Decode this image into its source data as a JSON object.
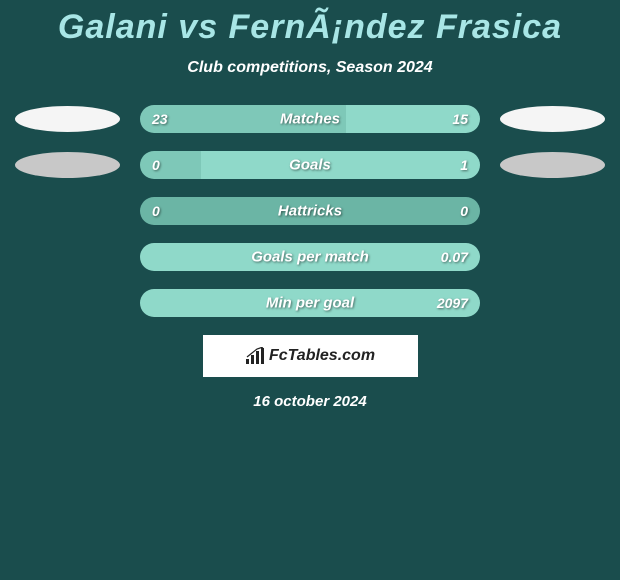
{
  "title": "Galani vs FernÃ¡ndez Frasica",
  "subtitle": "Club competitions, Season 2024",
  "colors": {
    "background": "#1a4d4d",
    "title_color": "#a8e6e6",
    "text_white": "#ffffff",
    "bar_left": "#7ec8b8",
    "bar_right": "#8fd9c9",
    "bar_neutral": "#6bb5a5",
    "ellipse_white": "#f5f5f5",
    "ellipse_gray": "#c8c8c8"
  },
  "rows": [
    {
      "label": "Matches",
      "left_val": "23",
      "right_val": "15",
      "left_pct": 60.5,
      "right_pct": 39.5,
      "left_color": "#7ec8b8",
      "right_color": "#8fd9c9",
      "show_left_ellipse": true,
      "show_right_ellipse": true,
      "left_ellipse_class": "white",
      "right_ellipse_class": "white"
    },
    {
      "label": "Goals",
      "left_val": "0",
      "right_val": "1",
      "left_pct": 18,
      "right_pct": 82,
      "left_color": "#7ec8b8",
      "right_color": "#8fd9c9",
      "show_left_ellipse": true,
      "show_right_ellipse": true,
      "left_ellipse_class": "gray",
      "right_ellipse_class": "gray"
    },
    {
      "label": "Hattricks",
      "left_val": "0",
      "right_val": "0",
      "left_pct": 100,
      "right_pct": 0,
      "left_color": "#6bb5a5",
      "right_color": "#6bb5a5",
      "show_left_ellipse": false,
      "show_right_ellipse": false
    },
    {
      "label": "Goals per match",
      "left_val": "",
      "right_val": "0.07",
      "left_pct": 0,
      "right_pct": 100,
      "left_color": "#6bb5a5",
      "right_color": "#8fd9c9",
      "show_left_ellipse": false,
      "show_right_ellipse": false
    },
    {
      "label": "Min per goal",
      "left_val": "",
      "right_val": "2097",
      "left_pct": 0,
      "right_pct": 100,
      "left_color": "#6bb5a5",
      "right_color": "#8fd9c9",
      "show_left_ellipse": false,
      "show_right_ellipse": false
    }
  ],
  "logo_text": "FcTables.com",
  "date": "16 october 2024"
}
